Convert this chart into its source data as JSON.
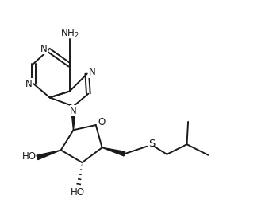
{
  "bg_color": "#ffffff",
  "line_color": "#1a1a1a",
  "line_width": 1.4,
  "font_size": 8.5,
  "xlim": [
    0,
    10
  ],
  "ylim": [
    0,
    8.5
  ]
}
